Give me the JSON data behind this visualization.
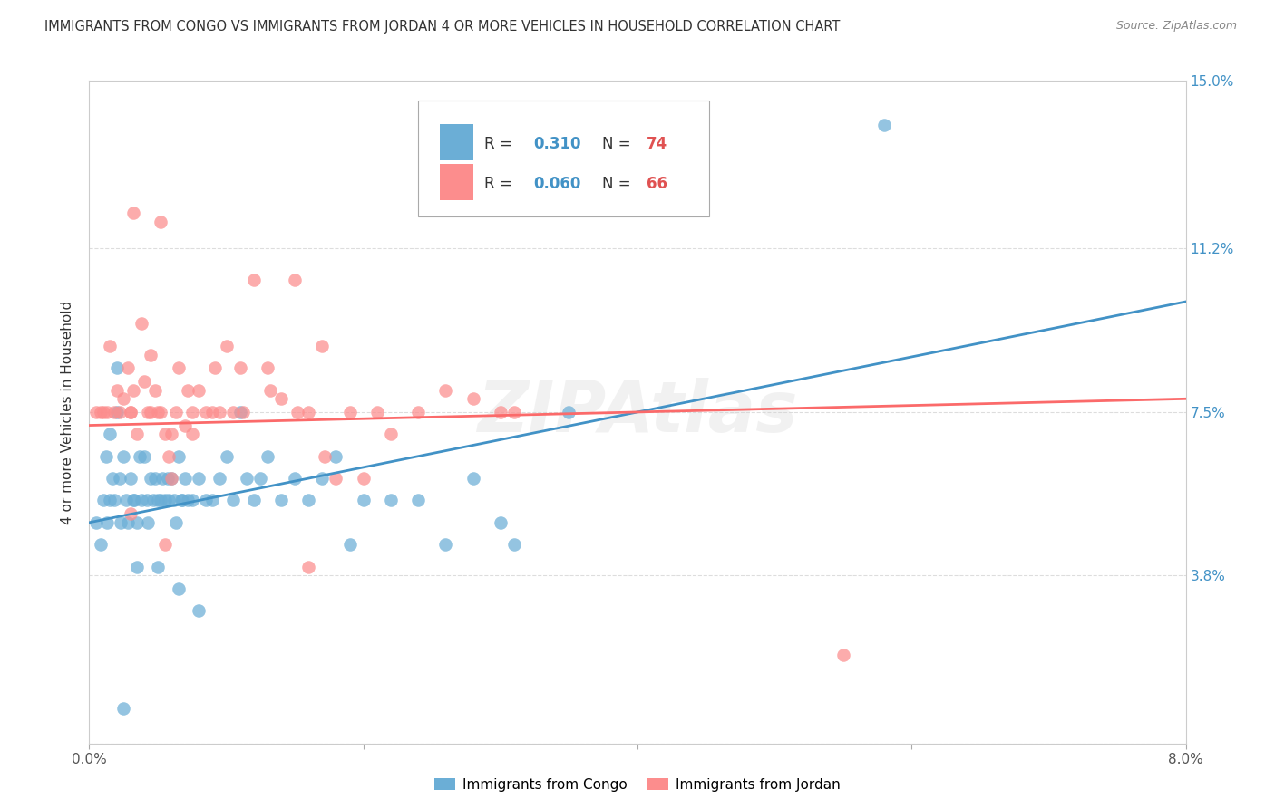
{
  "title": "IMMIGRANTS FROM CONGO VS IMMIGRANTS FROM JORDAN 4 OR MORE VEHICLES IN HOUSEHOLD CORRELATION CHART",
  "source": "Source: ZipAtlas.com",
  "ylabel": "4 or more Vehicles in Household",
  "xlim": [
    0.0,
    8.0
  ],
  "ylim": [
    0.0,
    15.0
  ],
  "yticks": [
    0.0,
    3.8,
    7.5,
    11.2,
    15.0
  ],
  "ytick_labels": [
    "",
    "3.8%",
    "7.5%",
    "11.2%",
    "15.0%"
  ],
  "xticks": [
    0.0,
    2.0,
    4.0,
    6.0,
    8.0
  ],
  "xtick_labels": [
    "0.0%",
    "",
    "",
    "",
    "8.0%"
  ],
  "congo_color": "#6baed6",
  "jordan_color": "#fc8d8d",
  "congo_line_color": "#4292c6",
  "jordan_line_color": "#fb6a6a",
  "legend_label1": "Immigrants from Congo",
  "legend_label2": "Immigrants from Jordan",
  "legend_R1": "R =  0.310",
  "legend_N1": "N = 74",
  "legend_R2": "R =  0.060",
  "legend_N2": "N = 66",
  "watermark": "ZIPAtlas",
  "background_color": "#ffffff",
  "congo_x": [
    0.05,
    0.08,
    0.1,
    0.12,
    0.13,
    0.15,
    0.15,
    0.17,
    0.18,
    0.2,
    0.22,
    0.23,
    0.25,
    0.27,
    0.28,
    0.3,
    0.32,
    0.33,
    0.35,
    0.37,
    0.38,
    0.4,
    0.42,
    0.43,
    0.45,
    0.47,
    0.48,
    0.5,
    0.52,
    0.53,
    0.55,
    0.57,
    0.58,
    0.6,
    0.62,
    0.63,
    0.65,
    0.67,
    0.68,
    0.7,
    0.72,
    0.75,
    0.8,
    0.85,
    0.9,
    0.95,
    1.0,
    1.05,
    1.1,
    1.15,
    1.2,
    1.25,
    1.3,
    1.4,
    1.5,
    1.6,
    1.7,
    1.8,
    1.9,
    2.0,
    2.2,
    2.4,
    2.6,
    2.8,
    3.0,
    3.1,
    3.5,
    0.2,
    0.35,
    0.5,
    0.65,
    0.8,
    5.8,
    0.25
  ],
  "congo_y": [
    5.0,
    4.5,
    5.5,
    6.5,
    5.0,
    7.0,
    5.5,
    6.0,
    5.5,
    7.5,
    6.0,
    5.0,
    6.5,
    5.5,
    5.0,
    6.0,
    5.5,
    5.5,
    5.0,
    6.5,
    5.5,
    6.5,
    5.5,
    5.0,
    6.0,
    5.5,
    6.0,
    5.5,
    5.5,
    6.0,
    5.5,
    6.0,
    5.5,
    6.0,
    5.5,
    5.0,
    6.5,
    5.5,
    5.5,
    6.0,
    5.5,
    5.5,
    6.0,
    5.5,
    5.5,
    6.0,
    6.5,
    5.5,
    7.5,
    6.0,
    5.5,
    6.0,
    6.5,
    5.5,
    6.0,
    5.5,
    6.0,
    6.5,
    4.5,
    5.5,
    5.5,
    5.5,
    4.5,
    6.0,
    5.0,
    4.5,
    7.5,
    8.5,
    4.0,
    4.0,
    3.5,
    3.0,
    14.0,
    0.8
  ],
  "jordan_x": [
    0.05,
    0.08,
    0.1,
    0.13,
    0.15,
    0.18,
    0.2,
    0.22,
    0.25,
    0.28,
    0.3,
    0.32,
    0.35,
    0.38,
    0.4,
    0.43,
    0.45,
    0.48,
    0.5,
    0.52,
    0.55,
    0.58,
    0.6,
    0.63,
    0.65,
    0.7,
    0.75,
    0.8,
    0.85,
    0.9,
    0.95,
    1.0,
    1.05,
    1.1,
    1.2,
    1.3,
    1.4,
    1.5,
    1.6,
    1.7,
    1.8,
    1.9,
    2.0,
    2.1,
    2.2,
    2.4,
    2.6,
    2.8,
    3.0,
    3.1,
    0.3,
    0.45,
    0.6,
    0.75,
    0.3,
    0.55,
    1.6,
    5.5,
    0.32,
    0.52,
    0.72,
    0.92,
    1.12,
    1.32,
    1.52,
    1.72
  ],
  "jordan_y": [
    7.5,
    7.5,
    7.5,
    7.5,
    9.0,
    7.5,
    8.0,
    7.5,
    7.8,
    8.5,
    7.5,
    8.0,
    7.0,
    9.5,
    8.2,
    7.5,
    7.5,
    8.0,
    7.5,
    7.5,
    7.0,
    6.5,
    7.0,
    7.5,
    8.5,
    7.2,
    7.0,
    8.0,
    7.5,
    7.5,
    7.5,
    9.0,
    7.5,
    8.5,
    10.5,
    8.5,
    7.8,
    10.5,
    7.5,
    9.0,
    6.0,
    7.5,
    6.0,
    7.5,
    7.0,
    7.5,
    8.0,
    7.8,
    7.5,
    7.5,
    7.5,
    8.8,
    6.0,
    7.5,
    5.2,
    4.5,
    4.0,
    2.0,
    12.0,
    11.8,
    8.0,
    8.5,
    7.5,
    8.0,
    7.5,
    6.5
  ]
}
